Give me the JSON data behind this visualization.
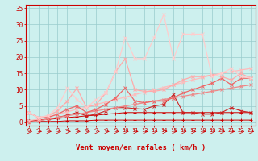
{
  "x": [
    0,
    1,
    2,
    3,
    4,
    5,
    6,
    7,
    8,
    9,
    10,
    11,
    12,
    13,
    14,
    15,
    16,
    17,
    18,
    19,
    20,
    21,
    22,
    23
  ],
  "background_color": "#cdf0ee",
  "grid_color": "#99cccc",
  "xlabel": "Vent moyen/en rafales ( km/h )",
  "ylim": [
    -1,
    36
  ],
  "xlim": [
    -0.3,
    23.5
  ],
  "yticks": [
    0,
    5,
    10,
    15,
    20,
    25,
    30,
    35
  ],
  "series": [
    {
      "name": "flat_near_zero_1",
      "color": "#cc0000",
      "marker": "+",
      "markersize": 3,
      "linewidth": 0.7,
      "y": [
        0.3,
        0.3,
        0.3,
        0.3,
        0.5,
        0.5,
        0.5,
        0.7,
        0.7,
        0.7,
        0.7,
        0.7,
        0.7,
        0.7,
        0.7,
        0.7,
        0.7,
        0.7,
        0.7,
        0.7,
        0.7,
        0.7,
        0.7,
        0.7
      ]
    },
    {
      "name": "flat_near_zero_2",
      "color": "#cc0000",
      "marker": "+",
      "markersize": 3,
      "linewidth": 0.7,
      "y": [
        0.5,
        0.7,
        0.9,
        1.2,
        1.5,
        1.7,
        2.0,
        2.2,
        2.5,
        2.7,
        3.0,
        3.0,
        3.0,
        3.0,
        3.0,
        3.0,
        3.0,
        3.0,
        3.0,
        3.0,
        3.0,
        3.0,
        3.0,
        3.0
      ]
    },
    {
      "name": "medium_dark_volatile",
      "color": "#cc2222",
      "marker": "x",
      "markersize": 3,
      "linewidth": 0.8,
      "y": [
        0.5,
        0.7,
        1.0,
        1.5,
        2.2,
        3.0,
        2.0,
        2.5,
        3.5,
        4.5,
        4.5,
        4.2,
        4.0,
        5.0,
        5.5,
        8.5,
        3.0,
        3.0,
        2.5,
        2.5,
        3.0,
        4.5,
        3.5,
        3.0
      ]
    },
    {
      "name": "straight_light1",
      "color": "#ee8888",
      "marker": "x",
      "markersize": 3,
      "linewidth": 0.9,
      "y": [
        0.0,
        0.5,
        1.0,
        1.5,
        2.0,
        2.5,
        3.0,
        3.5,
        4.0,
        4.5,
        5.0,
        5.5,
        6.0,
        6.5,
        7.0,
        7.5,
        8.0,
        8.5,
        9.0,
        9.5,
        10.0,
        10.5,
        11.0,
        11.5
      ]
    },
    {
      "name": "straight_light2",
      "color": "#ffbbbb",
      "marker": "x",
      "markersize": 3,
      "linewidth": 0.9,
      "y": [
        0.5,
        1.0,
        1.7,
        2.5,
        3.2,
        4.0,
        4.7,
        5.5,
        6.2,
        7.0,
        7.7,
        8.5,
        9.2,
        10.0,
        10.7,
        11.5,
        12.2,
        13.0,
        13.7,
        14.5,
        15.0,
        15.5,
        16.0,
        16.5
      ]
    },
    {
      "name": "medium_pink_rise",
      "color": "#ee6666",
      "marker": "x",
      "markersize": 3,
      "linewidth": 0.9,
      "y": [
        3.0,
        1.5,
        1.5,
        2.5,
        4.0,
        5.0,
        3.0,
        4.0,
        5.5,
        7.5,
        10.5,
        6.5,
        6.0,
        6.5,
        6.5,
        7.5,
        9.0,
        10.0,
        11.0,
        12.0,
        13.5,
        11.5,
        13.5,
        13.5
      ]
    },
    {
      "name": "light_pink_peak",
      "color": "#ffaaaa",
      "marker": "x",
      "markersize": 3,
      "linewidth": 0.9,
      "y": [
        3.0,
        1.5,
        2.0,
        3.5,
        6.5,
        10.5,
        4.5,
        5.5,
        9.0,
        15.5,
        19.5,
        10.0,
        9.5,
        9.5,
        10.0,
        11.5,
        13.0,
        14.0,
        14.0,
        14.5,
        14.0,
        13.0,
        15.0,
        13.5
      ]
    },
    {
      "name": "lightest_pink_big_peak",
      "color": "#ffcccc",
      "marker": "x",
      "markersize": 3,
      "linewidth": 0.9,
      "y": [
        3.0,
        1.5,
        2.0,
        4.5,
        10.5,
        7.0,
        4.5,
        7.0,
        9.0,
        15.5,
        26.0,
        19.5,
        19.5,
        26.0,
        33.0,
        19.5,
        27.0,
        27.0,
        27.0,
        14.0,
        15.0,
        16.5,
        14.0,
        13.5
      ]
    }
  ],
  "tick_label_fontsize": 5.0,
  "xlabel_fontsize": 6.5,
  "ytick_fontsize": 5.5
}
